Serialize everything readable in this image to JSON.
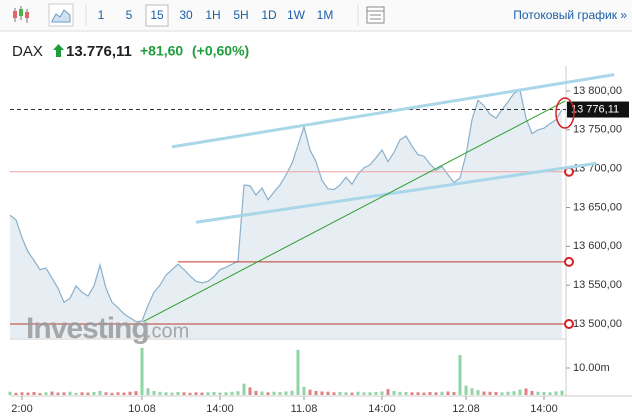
{
  "toolbar": {
    "intervals": [
      "1",
      "5",
      "15",
      "30",
      "1H",
      "5H",
      "1D",
      "1W",
      "1M"
    ],
    "selected": 2,
    "stream_link": "Потоковый график »"
  },
  "header": {
    "symbol": "DAX",
    "price": "13.776,11",
    "change": "+81,60",
    "change_pct": "(+0,60%)"
  },
  "watermark": {
    "brand": "Investing",
    "suffix": ".com"
  },
  "chart_data": {
    "type": "area",
    "color": "#8ab0cc",
    "fill": "#e6eef4",
    "categories": [
      null,
      null,
      "2:00",
      null,
      null,
      null,
      null,
      null,
      null,
      null,
      null,
      null,
      null,
      null,
      null,
      null,
      null,
      null,
      null,
      null,
      null,
      null,
      "10.08",
      null,
      null,
      null,
      null,
      null,
      null,
      null,
      null,
      null,
      null,
      null,
      null,
      "14:00",
      null,
      null,
      null,
      null,
      null,
      null,
      null,
      null,
      null,
      null,
      null,
      null,
      null,
      "11.08",
      null,
      null,
      null,
      null,
      null,
      null,
      null,
      null,
      null,
      null,
      null,
      null,
      "14:00",
      null,
      null,
      null,
      null,
      null,
      null,
      null,
      null,
      null,
      null,
      null,
      null,
      null,
      "12.08",
      null,
      null,
      null,
      null,
      null,
      null,
      null,
      null,
      null,
      null,
      null,
      null,
      "14:00",
      null,
      null,
      null
    ],
    "values": [
      13640,
      13634,
      13611,
      13593,
      13582,
      13570,
      13572,
      13559,
      13546,
      13528,
      13533,
      13549,
      13541,
      13536,
      13549,
      13576,
      13546,
      13528,
      13521,
      13513,
      13508,
      13503,
      13504,
      13524,
      13541,
      13550,
      13563,
      13570,
      13577,
      13570,
      13562,
      13555,
      13553,
      13555,
      13561,
      13570,
      13573,
      13577,
      13581,
      13679,
      13678,
      13666,
      13675,
      13660,
      13670,
      13679,
      13692,
      13707,
      13730,
      13754,
      13724,
      13709,
      13685,
      13674,
      13673,
      13679,
      13689,
      13680,
      13693,
      13701,
      13705,
      13714,
      13724,
      13709,
      13721,
      13737,
      13742,
      13729,
      13718,
      13716,
      13706,
      13698,
      13703,
      13692,
      13682,
      13688,
      13718,
      13763,
      13788,
      13781,
      13770,
      13765,
      13776,
      13786,
      13797,
      13801,
      13765,
      13745,
      13750,
      13752,
      13758,
      13763,
      13776
    ],
    "ylim": [
      13482,
      13827
    ],
    "yticks": [
      {
        "value": 13500,
        "label": "13 500,00"
      },
      {
        "value": 13550,
        "label": "13 550,00"
      },
      {
        "value": 13600,
        "label": "13 600,00"
      },
      {
        "value": 13650,
        "label": "13 650,00"
      },
      {
        "value": 13700,
        "label": "13 700,00"
      },
      {
        "value": 13750,
        "label": "13 750,00"
      },
      {
        "value": 13800,
        "label": "13 800,00"
      }
    ],
    "last_price": {
      "value": 13776.11,
      "label": "13 776,11"
    },
    "horizontal_lines": [
      {
        "value": 13696,
        "from": 0,
        "color": "#f2a3a3",
        "handle": true
      },
      {
        "value": 13580,
        "from": 28,
        "color": "#c0392b",
        "handle": true
      },
      {
        "value": 13500,
        "from": 0,
        "color": "#c0392b",
        "handle": true
      }
    ],
    "trend_lines": [
      {
        "color": "#a9d6e8",
        "width": 3,
        "points": [
          [
            27,
            13728
          ],
          [
            100.7,
            13821
          ]
        ]
      },
      {
        "color": "#a9d6e8",
        "width": 3,
        "points": [
          [
            31,
            13631
          ],
          [
            97.8,
            13707
          ]
        ]
      },
      {
        "color": "#2e9e2e",
        "width": 1,
        "points": [
          [
            22.2,
            13503
          ],
          [
            92.5,
            13787
          ]
        ]
      }
    ],
    "volume": {
      "values": [
        1.2,
        0.8,
        1,
        0.9,
        1.1,
        0.7,
        1,
        1.3,
        0.9,
        1,
        1.2,
        0.8,
        1,
        0.9,
        1.1,
        1.5,
        1,
        0.8,
        1,
        0.9,
        1.2,
        1.4,
        17.5,
        2.5,
        1.5,
        1.2,
        1,
        0.9,
        1.1,
        1,
        0.8,
        1,
        0.9,
        1,
        1.1,
        0.9,
        1,
        1.2,
        1.4,
        4.2,
        2.8,
        1.5,
        1.3,
        1,
        1.2,
        1.1,
        1.3,
        1.6,
        16.7,
        3,
        2,
        1.5,
        1.3,
        1.2,
        1,
        1.1,
        1,
        0.9,
        1.2,
        1,
        1,
        1.1,
        1.3,
        2.2,
        1.5,
        1.2,
        1.1,
        1,
        1,
        0.9,
        1.1,
        1,
        1.2,
        1.3,
        1.1,
        14.8,
        3.5,
        2.5,
        1.8,
        1.3,
        1.2,
        1.1,
        1,
        1.2,
        1.4,
        2,
        2.4,
        1.5,
        1.2,
        1.1,
        1,
        1.3,
        1.6
      ],
      "up_color": "#8fd4a4",
      "down_color": "#e08080",
      "ylim": [
        0,
        20
      ],
      "yticks": [
        {
          "value": 10,
          "label": "10.00m"
        }
      ]
    }
  }
}
